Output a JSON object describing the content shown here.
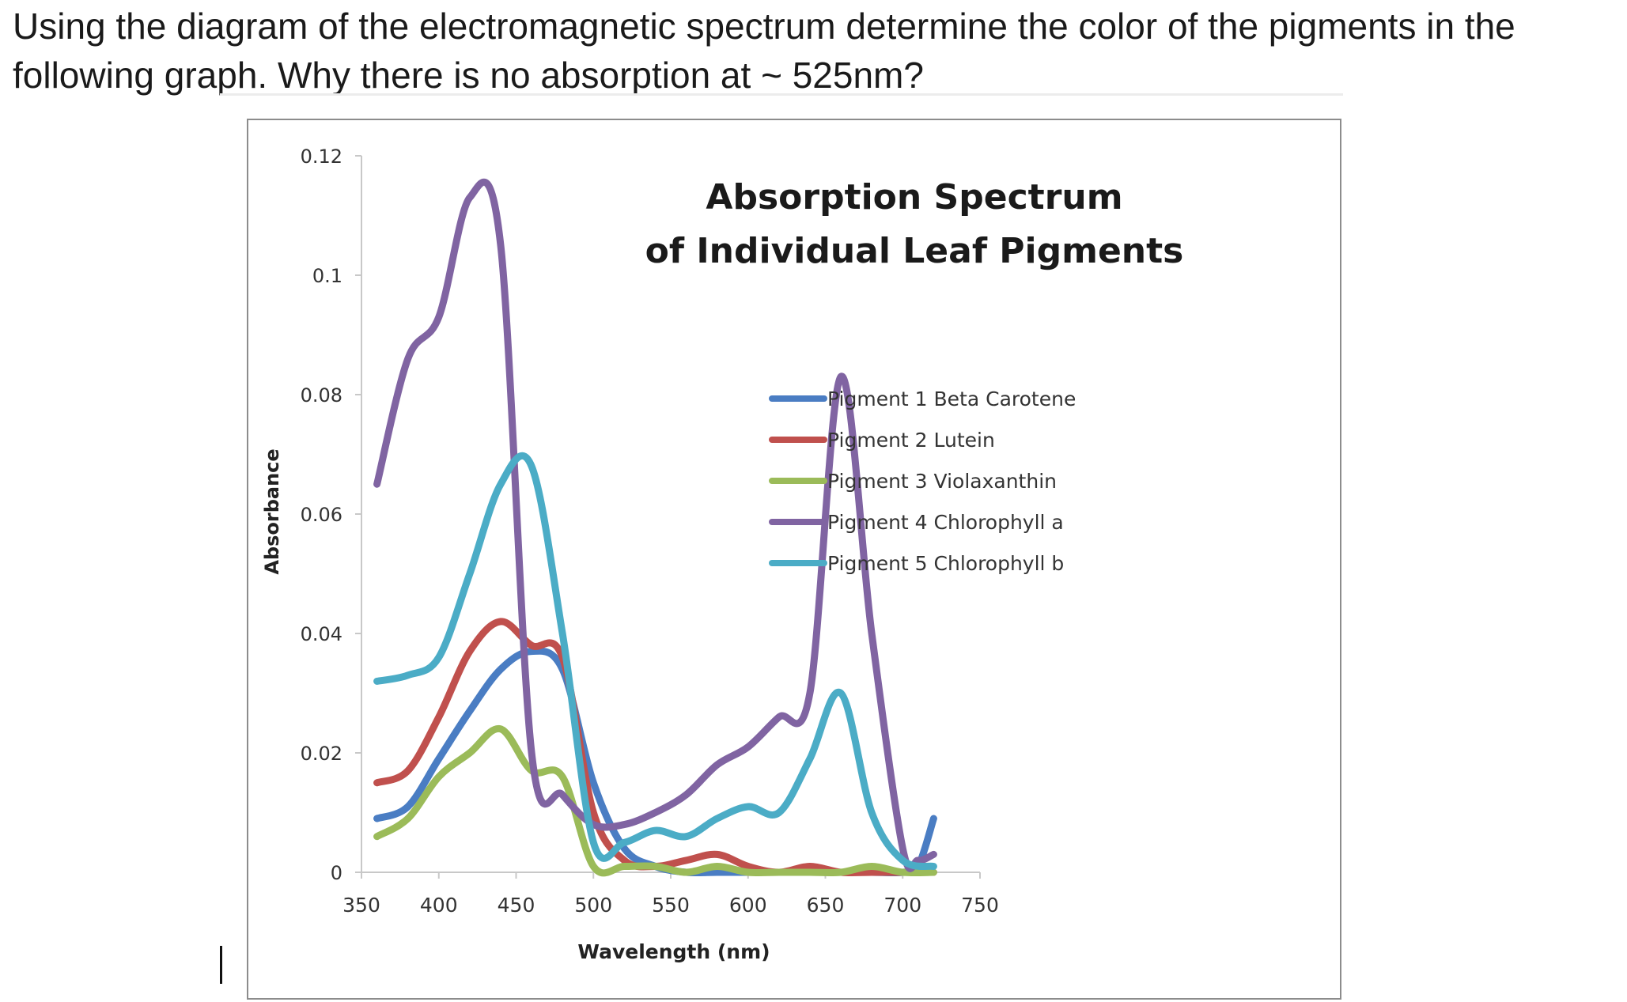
{
  "question": {
    "line1": "Using the diagram of the electromagnetic spectrum determine the color of the pigments in the",
    "line2": "following graph. Why there is no absorption at ~ 525nm?"
  },
  "chart_data": {
    "type": "line",
    "title_lines": [
      "Absorption Spectrum",
      "of Individual Leaf Pigments"
    ],
    "xlabel": "Wavelength (nm)",
    "ylabel": "Absorbance",
    "xlim": [
      350,
      750
    ],
    "ylim": [
      0,
      0.12
    ],
    "xticks": [
      "350",
      "400",
      "450",
      "500",
      "550",
      "600",
      "650",
      "700",
      "750"
    ],
    "xtick_values": [
      350,
      400,
      450,
      500,
      550,
      600,
      650,
      700,
      750
    ],
    "yticks": [
      "0",
      "0.02",
      "0.04",
      "0.06",
      "0.08",
      "0.1",
      "0.12"
    ],
    "ytick_values": [
      0,
      0.02,
      0.04,
      0.06,
      0.08,
      0.1,
      0.12
    ],
    "grid": false,
    "legend_position": "right",
    "series": [
      {
        "name": "Pigment 1 Beta Carotene",
        "color": "#4a7dc3",
        "x": [
          360,
          380,
          400,
          420,
          440,
          460,
          480,
          500,
          520,
          540,
          560,
          580,
          600,
          620,
          640,
          660,
          680,
          700,
          710,
          720
        ],
        "y": [
          0.009,
          0.011,
          0.019,
          0.027,
          0.034,
          0.037,
          0.034,
          0.015,
          0.004,
          0.001,
          0.0,
          0.0,
          0.0,
          0.0,
          0.0,
          0.0,
          0.0,
          0.0,
          0.001,
          0.009
        ]
      },
      {
        "name": "Pigment 2 Lutein",
        "color": "#c0504d",
        "x": [
          360,
          380,
          400,
          420,
          440,
          460,
          480,
          500,
          520,
          540,
          560,
          580,
          600,
          620,
          640,
          660,
          680,
          700,
          720
        ],
        "y": [
          0.015,
          0.017,
          0.026,
          0.037,
          0.042,
          0.038,
          0.036,
          0.01,
          0.002,
          0.001,
          0.002,
          0.003,
          0.001,
          0.0,
          0.001,
          0.0,
          0.0,
          0.0,
          0.0
        ]
      },
      {
        "name": "Pigment 3 Violaxanthin",
        "color": "#9bbb59",
        "x": [
          360,
          380,
          400,
          420,
          440,
          460,
          480,
          500,
          520,
          540,
          560,
          580,
          600,
          620,
          640,
          660,
          680,
          700,
          720
        ],
        "y": [
          0.006,
          0.009,
          0.016,
          0.02,
          0.024,
          0.017,
          0.016,
          0.001,
          0.001,
          0.001,
          0.0,
          0.001,
          0.0,
          0.0,
          0.0,
          0.0,
          0.001,
          0.0,
          0.0
        ]
      },
      {
        "name": "Pigment 4 Chlorophyll a",
        "color": "#8064a2",
        "x": [
          360,
          380,
          400,
          420,
          440,
          460,
          480,
          500,
          520,
          540,
          560,
          580,
          600,
          620,
          640,
          660,
          680,
          700,
          710,
          720
        ],
        "y": [
          0.065,
          0.086,
          0.093,
          0.113,
          0.105,
          0.02,
          0.013,
          0.008,
          0.008,
          0.01,
          0.013,
          0.018,
          0.021,
          0.026,
          0.03,
          0.083,
          0.04,
          0.004,
          0.002,
          0.003
        ]
      },
      {
        "name": "Pigment 5 Chlorophyll b",
        "color": "#4bacc6",
        "x": [
          360,
          380,
          400,
          420,
          440,
          460,
          480,
          500,
          520,
          540,
          560,
          580,
          600,
          620,
          640,
          660,
          680,
          700,
          720
        ],
        "y": [
          0.032,
          0.033,
          0.036,
          0.05,
          0.065,
          0.068,
          0.04,
          0.005,
          0.005,
          0.007,
          0.006,
          0.009,
          0.011,
          0.01,
          0.019,
          0.03,
          0.01,
          0.002,
          0.001
        ]
      }
    ]
  }
}
